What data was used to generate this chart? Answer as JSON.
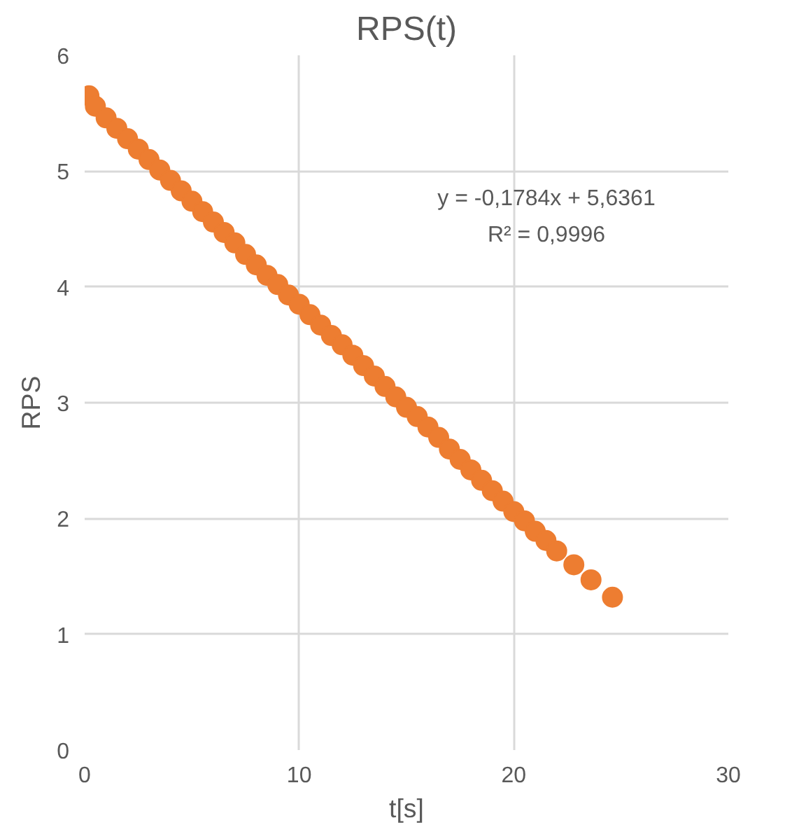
{
  "chart_data": {
    "type": "scatter",
    "title": "RPS(t)",
    "xlabel": "t[s]",
    "ylabel": "RPS",
    "x": [
      0.2,
      0.5,
      1,
      1.5,
      2,
      2.5,
      3,
      3.5,
      4,
      4.5,
      5,
      5.5,
      6,
      6.5,
      7,
      7.5,
      8,
      8.5,
      9,
      9.5,
      10,
      10.5,
      11,
      11.5,
      12,
      12.5,
      13,
      13.5,
      14,
      14.5,
      15,
      15.5,
      16,
      16.5,
      17,
      17.5,
      18,
      18.5,
      19,
      19.5,
      20,
      20.5,
      21,
      21.5,
      22,
      22.8,
      23.6,
      24.6
    ],
    "series": [
      {
        "color": "#ed7d31",
        "values": [
          5.65,
          5.56,
          5.46,
          5.37,
          5.28,
          5.19,
          5.1,
          5.01,
          4.92,
          4.83,
          4.74,
          4.65,
          4.56,
          4.47,
          4.38,
          4.28,
          4.19,
          4.1,
          4.02,
          3.93,
          3.85,
          3.76,
          3.67,
          3.58,
          3.5,
          3.41,
          3.32,
          3.23,
          3.14,
          3.05,
          2.96,
          2.88,
          2.79,
          2.7,
          2.6,
          2.51,
          2.42,
          2.33,
          2.24,
          2.15,
          2.06,
          1.98,
          1.89,
          1.81,
          1.72,
          1.6,
          1.47,
          1.32
        ]
      }
    ],
    "xlim": [
      0,
      30
    ],
    "ylim": [
      0,
      6
    ],
    "xticks": [
      0,
      10,
      20,
      30
    ],
    "yticks": [
      0,
      1,
      2,
      3,
      4,
      5,
      6
    ],
    "grid": true,
    "marker": "circle",
    "annotations": [
      "y = -0,1784x + 5,6361",
      "R² = 0,9996"
    ]
  }
}
